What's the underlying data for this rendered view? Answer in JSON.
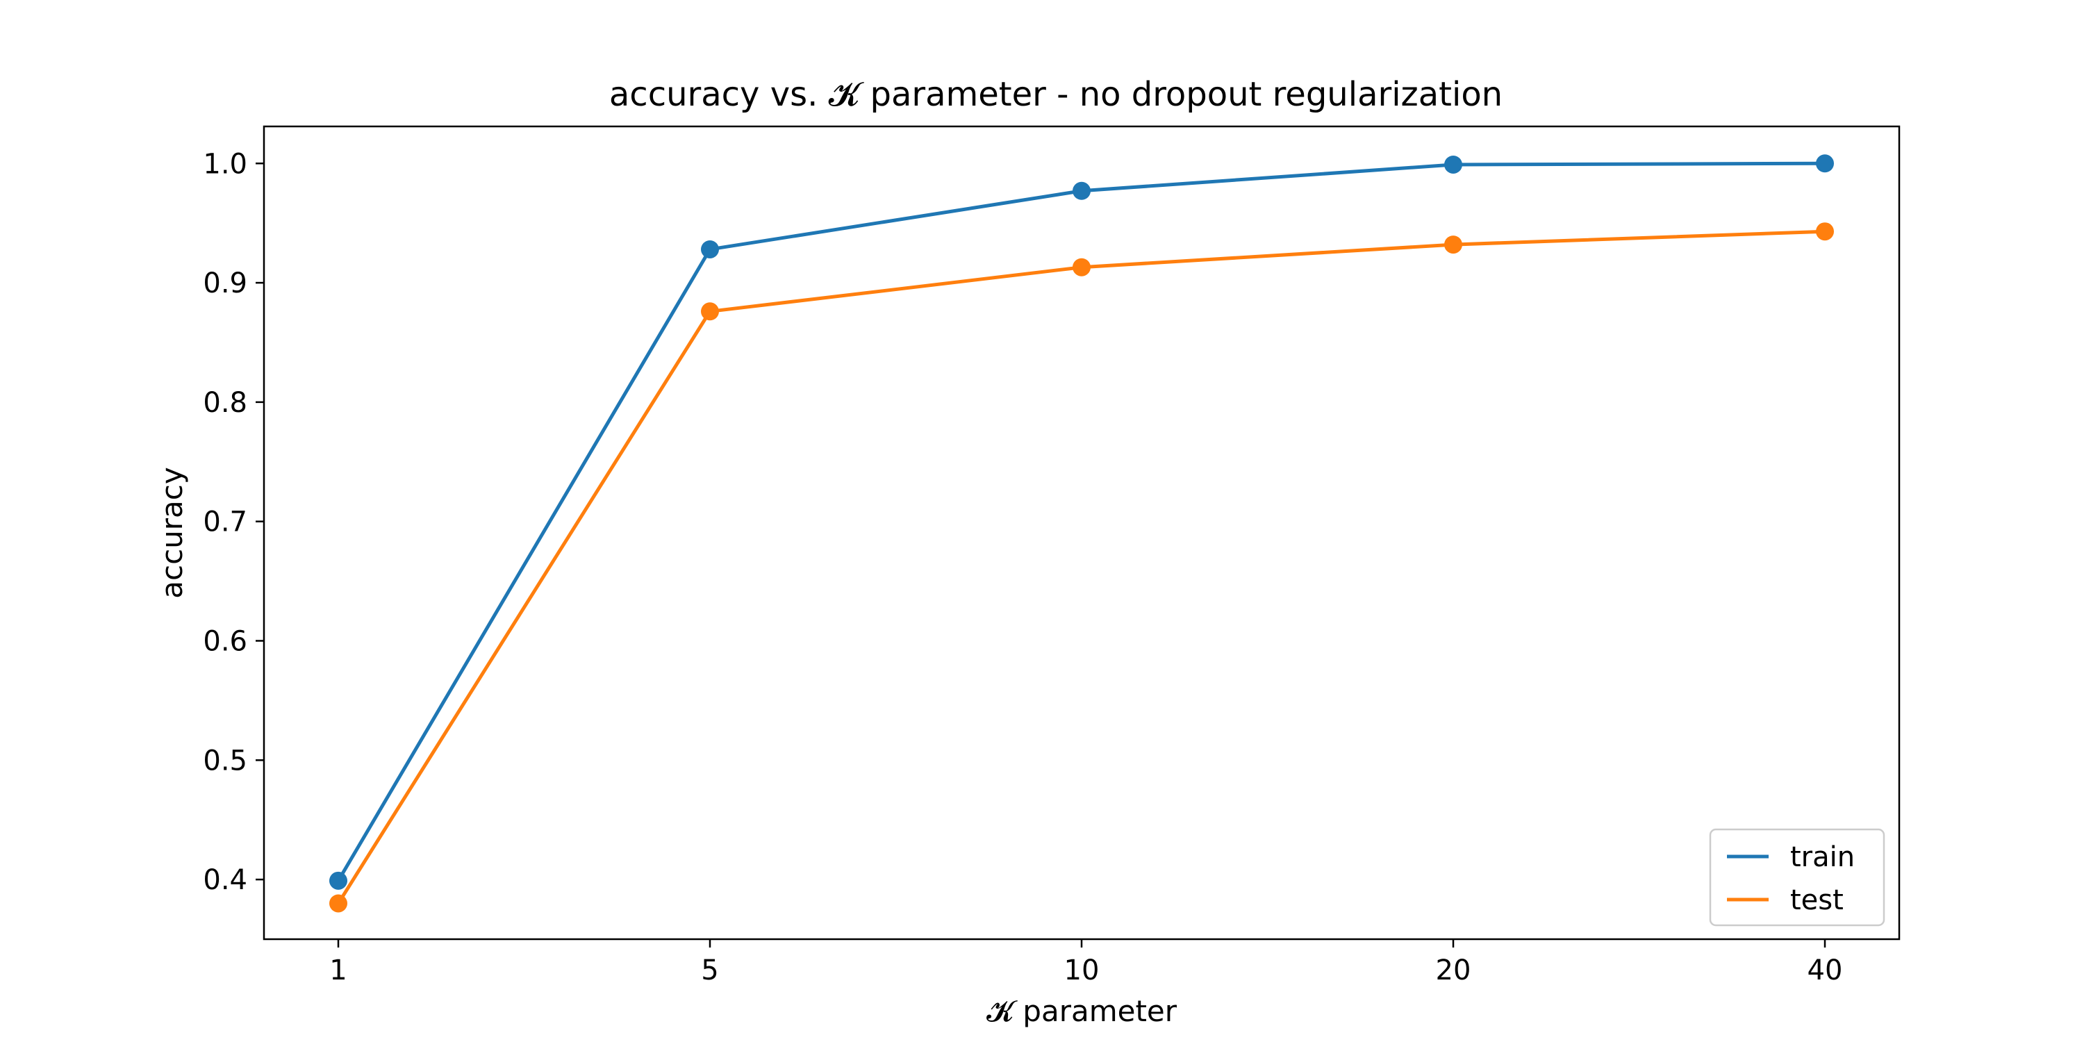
{
  "chart_data": {
    "type": "line",
    "title": "accuracy vs. 𝓚 parameter - no dropout regularization",
    "xlabel": "𝓚 parameter",
    "ylabel": "accuracy",
    "categories": [
      "1",
      "5",
      "10",
      "20",
      "40"
    ],
    "ylim": [
      0.35,
      1.031
    ],
    "yticks": [
      0.4,
      0.5,
      0.6,
      0.7,
      0.8,
      0.9,
      1.0
    ],
    "ytick_labels": [
      "0.4",
      "0.5",
      "0.6",
      "0.7",
      "0.8",
      "0.9",
      "1.0"
    ],
    "grid": false,
    "legend_position": "lower right",
    "series": [
      {
        "name": "train",
        "color": "#1f77b4",
        "values": [
          0.399,
          0.928,
          0.977,
          0.999,
          1.0
        ]
      },
      {
        "name": "test",
        "color": "#ff7f0e",
        "values": [
          0.38,
          0.876,
          0.913,
          0.932,
          0.943
        ]
      }
    ]
  }
}
